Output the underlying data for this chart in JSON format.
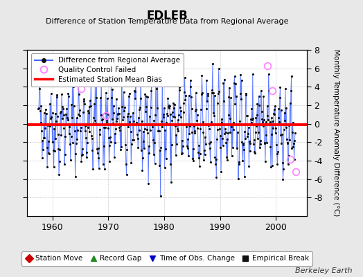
{
  "title": "EDLEB",
  "subtitle": "Difference of Station Temperature Data from Regional Average",
  "ylabel": "Monthly Temperature Anomaly Difference (°C)",
  "xlabel_years": [
    1960,
    1970,
    1980,
    1990,
    2000
  ],
  "xlim": [
    1955.5,
    2005.5
  ],
  "ylim": [
    -10,
    8
  ],
  "yticks": [
    -8,
    -6,
    -4,
    -2,
    0,
    2,
    4,
    6,
    8
  ],
  "bias_value": -0.1,
  "bias_color": "#ff0000",
  "line_color": "#4466ff",
  "dot_color": "#111111",
  "qc_color": "#ff88ff",
  "bg_color": "#e8e8e8",
  "plot_bg": "#ffffff",
  "watermark": "Berkeley Earth",
  "seed": 42,
  "start_year": 1957.5,
  "n_months": 552,
  "qc_points": [
    [
      1965.1,
      3.8
    ],
    [
      1969.6,
      0.85
    ],
    [
      1998.5,
      6.25
    ],
    [
      1999.3,
      3.55
    ],
    [
      2002.5,
      -3.85
    ],
    [
      2003.6,
      -5.2
    ]
  ],
  "bottom_legend_items": [
    {
      "marker": "D",
      "color": "#cc0000",
      "label": "Station Move"
    },
    {
      "marker": "^",
      "color": "#228B22",
      "label": "Record Gap"
    },
    {
      "marker": "v",
      "color": "#0000cc",
      "label": "Time of Obs. Change"
    },
    {
      "marker": "s",
      "color": "#111111",
      "label": "Empirical Break"
    }
  ]
}
